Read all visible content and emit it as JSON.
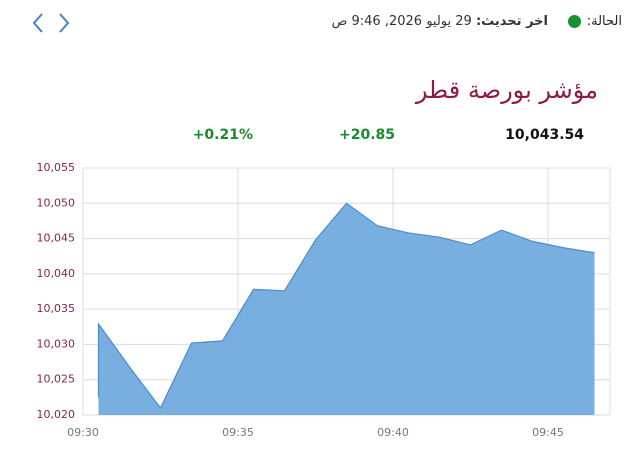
{
  "header": {
    "status_label": "الحالة:",
    "update_label": "اخر تحديث:",
    "update_time": "29 يوليو 2026, 9:46 ص",
    "title": "مؤشر بورصة قطر"
  },
  "stats": {
    "last": "10,043.54",
    "change": "+20.85",
    "change_percent": "+0.21%"
  },
  "chart_data": {
    "type": "area",
    "x": [
      0.5,
      0.5,
      1.5,
      2.5,
      3.5,
      4.5,
      5.5,
      6.5,
      7.5,
      8.5,
      9.5,
      10.5,
      11.5,
      12.5,
      13.5,
      14.5,
      15.5,
      16.5
    ],
    "values": [
      10022.5,
      10032.9,
      10026.8,
      10021.0,
      10030.2,
      10030.5,
      10037.8,
      10037.6,
      10044.8,
      10050.0,
      10046.8,
      10045.8,
      10045.2,
      10044.1,
      10046.2,
      10044.6,
      10043.7,
      10043.0
    ],
    "color": "#78aee0",
    "line_color": "#4a8ccc",
    "xlim": [
      0,
      17
    ],
    "xticks": [
      {
        "value": 0,
        "label": "09:30"
      },
      {
        "value": 5,
        "label": "09:35"
      },
      {
        "value": 10,
        "label": "09:40"
      },
      {
        "value": 15,
        "label": "09:45"
      }
    ],
    "ylim": [
      10020,
      10055
    ],
    "yticks": [
      {
        "value": 10020,
        "label": "10,020"
      },
      {
        "value": 10025,
        "label": "10,025"
      },
      {
        "value": 10030,
        "label": "10,030"
      },
      {
        "value": 10035,
        "label": "10,035"
      },
      {
        "value": 10040,
        "label": "10,040"
      },
      {
        "value": 10045,
        "label": "10,045"
      },
      {
        "value": 10050,
        "label": "10,050"
      },
      {
        "value": 10055,
        "label": "10,055"
      }
    ],
    "grid": true
  }
}
